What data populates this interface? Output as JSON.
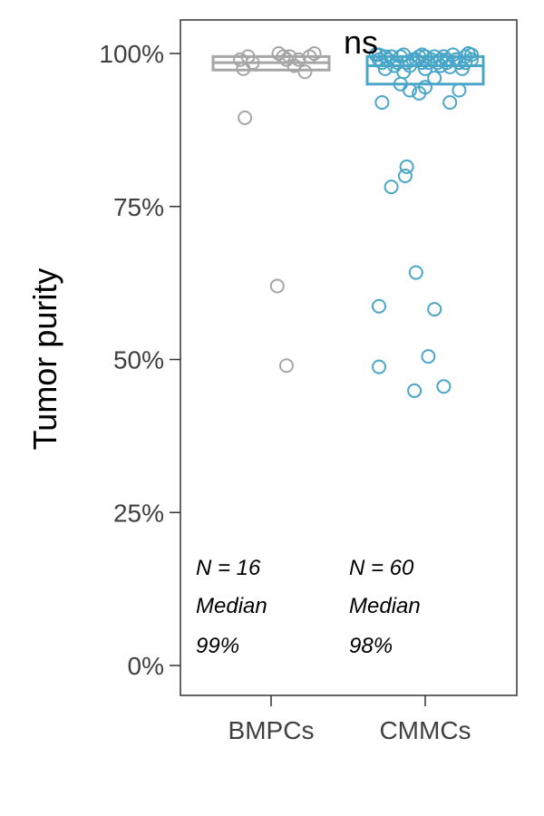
{
  "chart_data": {
    "type": "scatter",
    "ylabel": "Tumor purity",
    "xlabel": "",
    "categories": [
      "BMPCs",
      "CMMCs"
    ],
    "ylim": [
      -0.05,
      1.05
    ],
    "yticks": [
      0,
      0.25,
      0.5,
      0.75,
      1.0
    ],
    "ytick_labels": [
      "0%",
      "25%",
      "50%",
      "75%",
      "100%"
    ],
    "grid": false,
    "significance_label": "ns",
    "colors": {
      "BMPCs": "#a6a6a6",
      "CMMCs": "#4aa6c9"
    },
    "boxes": [
      {
        "name": "BMPCs",
        "q1": 0.973,
        "median": 0.985,
        "q3": 0.995
      },
      {
        "name": "CMMCs",
        "q1": 0.95,
        "median": 0.98,
        "q3": 0.995
      }
    ],
    "annotations": [
      {
        "group": "BMPCs",
        "lines": [
          "N = 16",
          "Median",
          "99%"
        ]
      },
      {
        "group": "CMMCs",
        "lines": [
          "N = 60",
          "Median",
          "98%"
        ]
      }
    ],
    "series": [
      {
        "name": "BMPCs",
        "points": [
          {
            "jitter": -0.18,
            "y": 0.975
          },
          {
            "jitter": -0.2,
            "y": 0.99
          },
          {
            "jitter": -0.15,
            "y": 0.995
          },
          {
            "jitter": -0.12,
            "y": 0.985
          },
          {
            "jitter": -0.17,
            "y": 0.895
          },
          {
            "jitter": 0.05,
            "y": 1.0
          },
          {
            "jitter": 0.08,
            "y": 0.995
          },
          {
            "jitter": 0.1,
            "y": 0.99
          },
          {
            "jitter": 0.12,
            "y": 0.995
          },
          {
            "jitter": 0.15,
            "y": 0.98
          },
          {
            "jitter": 0.18,
            "y": 0.99
          },
          {
            "jitter": 0.25,
            "y": 0.995
          },
          {
            "jitter": 0.28,
            "y": 1.0
          },
          {
            "jitter": 0.22,
            "y": 0.97
          },
          {
            "jitter": 0.04,
            "y": 0.62
          },
          {
            "jitter": 0.1,
            "y": 0.49
          }
        ]
      },
      {
        "name": "CMMCs",
        "points": [
          {
            "jitter": -0.32,
            "y": 0.998
          },
          {
            "jitter": -0.3,
            "y": 0.99
          },
          {
            "jitter": -0.26,
            "y": 0.975
          },
          {
            "jitter": -0.22,
            "y": 0.995
          },
          {
            "jitter": -0.18,
            "y": 0.985
          },
          {
            "jitter": -0.14,
            "y": 0.998
          },
          {
            "jitter": -0.1,
            "y": 0.98
          },
          {
            "jitter": -0.06,
            "y": 0.99
          },
          {
            "jitter": -0.02,
            "y": 0.998
          },
          {
            "jitter": 0.02,
            "y": 0.985
          },
          {
            "jitter": 0.06,
            "y": 0.995
          },
          {
            "jitter": 0.1,
            "y": 0.98
          },
          {
            "jitter": 0.14,
            "y": 0.99
          },
          {
            "jitter": 0.18,
            "y": 0.998
          },
          {
            "jitter": 0.22,
            "y": 0.985
          },
          {
            "jitter": 0.26,
            "y": 0.995
          },
          {
            "jitter": 0.3,
            "y": 0.99
          },
          {
            "jitter": 0.28,
            "y": 1.0
          },
          {
            "jitter": 0.24,
            "y": 0.975
          },
          {
            "jitter": 0.2,
            "y": 0.99
          },
          {
            "jitter": 0.16,
            "y": 0.978
          },
          {
            "jitter": 0.12,
            "y": 0.995
          },
          {
            "jitter": 0.08,
            "y": 0.985
          },
          {
            "jitter": 0.04,
            "y": 0.99
          },
          {
            "jitter": 0.0,
            "y": 0.975
          },
          {
            "jitter": -0.04,
            "y": 0.995
          },
          {
            "jitter": -0.08,
            "y": 0.99
          },
          {
            "jitter": -0.12,
            "y": 0.985
          },
          {
            "jitter": -0.16,
            "y": 0.995
          },
          {
            "jitter": -0.2,
            "y": 0.98
          },
          {
            "jitter": -0.24,
            "y": 0.99
          },
          {
            "jitter": -0.28,
            "y": 0.985
          },
          {
            "jitter": -0.3,
            "y": 0.998
          },
          {
            "jitter": -0.02,
            "y": 0.985
          },
          {
            "jitter": 0.0,
            "y": 0.995
          },
          {
            "jitter": 0.1,
            "y": 0.99
          },
          {
            "jitter": -0.14,
            "y": 0.97
          },
          {
            "jitter": 0.06,
            "y": 0.96
          },
          {
            "jitter": -0.16,
            "y": 0.95
          },
          {
            "jitter": -0.1,
            "y": 0.94
          },
          {
            "jitter": -0.04,
            "y": 0.935
          },
          {
            "jitter": 0.0,
            "y": 0.945
          },
          {
            "jitter": 0.22,
            "y": 0.94
          },
          {
            "jitter": -0.28,
            "y": 0.92
          },
          {
            "jitter": 0.16,
            "y": 0.92
          },
          {
            "jitter": -0.12,
            "y": 0.815
          },
          {
            "jitter": -0.13,
            "y": 0.8
          },
          {
            "jitter": -0.22,
            "y": 0.782
          },
          {
            "jitter": -0.06,
            "y": 0.642
          },
          {
            "jitter": -0.3,
            "y": 0.587
          },
          {
            "jitter": 0.06,
            "y": 0.582
          },
          {
            "jitter": 0.02,
            "y": 0.505
          },
          {
            "jitter": -0.3,
            "y": 0.488
          },
          {
            "jitter": 0.12,
            "y": 0.456
          },
          {
            "jitter": -0.07,
            "y": 0.449
          },
          {
            "jitter": 0.2,
            "y": 0.99
          },
          {
            "jitter": 0.26,
            "y": 0.985
          },
          {
            "jitter": -0.26,
            "y": 0.995
          },
          {
            "jitter": 0.3,
            "y": 0.998
          },
          {
            "jitter": 0.14,
            "y": 0.985
          }
        ]
      }
    ]
  }
}
